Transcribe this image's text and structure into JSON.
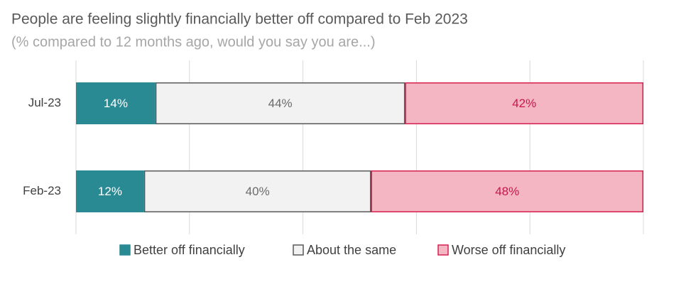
{
  "chart_data": {
    "type": "stacked-bar-horizontal",
    "title": "People are feeling slightly financially better off compared to Feb 2023",
    "subtitle": "(% compared to 12 months ago, would you say you are...)",
    "categories": [
      "Jul-23",
      "Feb-23"
    ],
    "series": [
      {
        "name": "Better off financially",
        "color": "#2a8a93",
        "border_color": "#2a8a93",
        "label_color": "#ffffff",
        "values": [
          14,
          12
        ],
        "value_labels": [
          "14%",
          "12%"
        ]
      },
      {
        "name": "About the same",
        "color": "#f2f2f2",
        "border_color": "#595959",
        "label_color": "#6b6b6b",
        "values": [
          44,
          40
        ],
        "value_labels": [
          "44%",
          "40%"
        ]
      },
      {
        "name": "Worse off financially",
        "color": "#f5b6c3",
        "border_color": "#d6204e",
        "label_color": "#c8174a",
        "values": [
          42,
          48
        ],
        "value_labels": [
          "42%",
          "48%"
        ]
      }
    ],
    "xlim": [
      0,
      100
    ],
    "xticks": [
      0,
      20,
      40,
      60,
      80,
      100
    ],
    "grid": true,
    "legend": "bottom"
  }
}
